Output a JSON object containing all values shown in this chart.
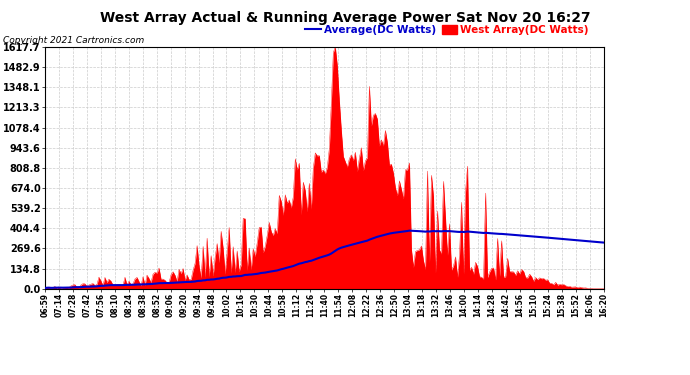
{
  "title": "West Array Actual & Running Average Power Sat Nov 20 16:27",
  "copyright": "Copyright 2021 Cartronics.com",
  "legend_avg": "Average(DC Watts)",
  "legend_west": "West Array(DC Watts)",
  "ymax": 1617.7,
  "yticks": [
    0.0,
    134.8,
    269.6,
    404.4,
    539.2,
    674.0,
    808.8,
    943.6,
    1078.4,
    1213.3,
    1348.1,
    1482.9,
    1617.7
  ],
  "bg_color": "#ffffff",
  "plot_bg_color": "#ffffff",
  "grid_color": "#aaaaaa",
  "bar_color": "#ff0000",
  "avg_line_color": "#0000cc",
  "title_color": "#000000",
  "copyright_color": "#000000",
  "time_labels": [
    "06:59",
    "07:14",
    "07:28",
    "07:42",
    "07:56",
    "08:10",
    "08:24",
    "08:38",
    "08:52",
    "09:06",
    "09:20",
    "09:34",
    "09:48",
    "10:02",
    "10:16",
    "10:30",
    "10:44",
    "10:58",
    "11:12",
    "11:26",
    "11:40",
    "11:54",
    "12:08",
    "12:22",
    "12:36",
    "12:50",
    "13:04",
    "13:18",
    "13:32",
    "13:46",
    "14:00",
    "14:14",
    "14:28",
    "14:42",
    "14:56",
    "15:10",
    "15:24",
    "15:38",
    "15:52",
    "16:06",
    "16:20"
  ]
}
